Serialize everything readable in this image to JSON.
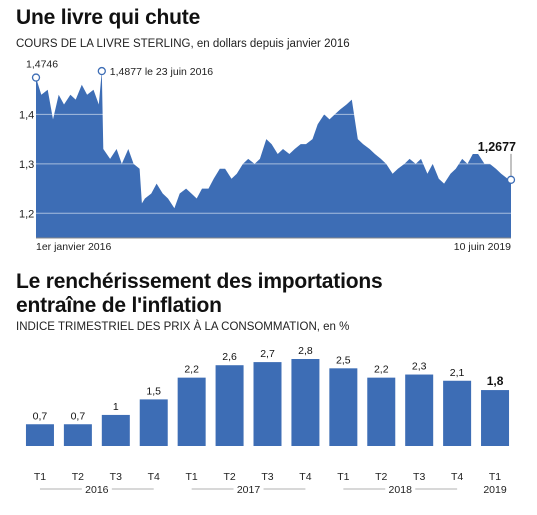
{
  "colors": {
    "accent": "#3d6db5",
    "text": "#111111",
    "grid": "#ffffff",
    "axis_text": "#222222"
  },
  "chart_data": [
    {
      "type": "area",
      "title": "Une livre qui chute",
      "subtitle": "COURS DE LA LIVRE STERLING, en dollars depuis janvier 2016",
      "xlabel": "",
      "ylabel": "",
      "x_range": [
        "2016-01-01",
        "2019-06-10"
      ],
      "x_tick_labels": [
        "1er janvier 2016",
        "10 juin 2019"
      ],
      "y_ticks": [
        "1,2",
        "1,3",
        "1,4"
      ],
      "y_tick_values": [
        1.2,
        1.3,
        1.4
      ],
      "ylim": [
        1.15,
        1.5
      ],
      "grid": true,
      "annotations": [
        {
          "text": "1,4746",
          "x": "2016-01-01",
          "y": 1.4746
        },
        {
          "text": "1,4877 le 23 juin 2016",
          "x": "2016-06-23",
          "y": 1.4877
        },
        {
          "text": "1,2677",
          "x": "2019-06-10",
          "y": 1.2677
        }
      ],
      "x": [
        "2016-01-01",
        "2016-01-15",
        "2016-02-01",
        "2016-02-15",
        "2016-03-01",
        "2016-03-15",
        "2016-04-01",
        "2016-04-15",
        "2016-05-01",
        "2016-05-15",
        "2016-06-01",
        "2016-06-15",
        "2016-06-23",
        "2016-06-27",
        "2016-07-15",
        "2016-08-01",
        "2016-08-15",
        "2016-09-01",
        "2016-09-15",
        "2016-10-01",
        "2016-10-07",
        "2016-10-15",
        "2016-11-01",
        "2016-11-15",
        "2016-12-01",
        "2016-12-15",
        "2017-01-01",
        "2017-01-15",
        "2017-02-01",
        "2017-02-15",
        "2017-03-01",
        "2017-03-15",
        "2017-04-01",
        "2017-04-15",
        "2017-05-01",
        "2017-05-15",
        "2017-06-01",
        "2017-06-15",
        "2017-07-01",
        "2017-07-15",
        "2017-08-01",
        "2017-08-15",
        "2017-09-01",
        "2017-09-15",
        "2017-10-01",
        "2017-10-15",
        "2017-11-01",
        "2017-11-15",
        "2017-12-01",
        "2017-12-15",
        "2018-01-01",
        "2018-01-15",
        "2018-02-01",
        "2018-02-15",
        "2018-03-01",
        "2018-03-15",
        "2018-04-01",
        "2018-04-15",
        "2018-05-01",
        "2018-05-15",
        "2018-06-01",
        "2018-06-15",
        "2018-07-01",
        "2018-07-15",
        "2018-08-01",
        "2018-08-15",
        "2018-09-01",
        "2018-09-15",
        "2018-10-01",
        "2018-10-15",
        "2018-11-01",
        "2018-11-15",
        "2018-12-01",
        "2018-12-15",
        "2019-01-01",
        "2019-01-15",
        "2019-02-01",
        "2019-02-15",
        "2019-03-01",
        "2019-03-15",
        "2019-04-01",
        "2019-04-15",
        "2019-05-01",
        "2019-05-15",
        "2019-06-01",
        "2019-06-10"
      ],
      "values": [
        1.4746,
        1.44,
        1.45,
        1.39,
        1.44,
        1.42,
        1.44,
        1.43,
        1.46,
        1.44,
        1.45,
        1.42,
        1.4877,
        1.33,
        1.31,
        1.33,
        1.3,
        1.33,
        1.3,
        1.29,
        1.22,
        1.23,
        1.24,
        1.26,
        1.24,
        1.23,
        1.21,
        1.24,
        1.25,
        1.24,
        1.23,
        1.25,
        1.25,
        1.27,
        1.29,
        1.29,
        1.27,
        1.28,
        1.3,
        1.31,
        1.3,
        1.31,
        1.35,
        1.34,
        1.32,
        1.33,
        1.32,
        1.33,
        1.34,
        1.34,
        1.35,
        1.38,
        1.4,
        1.39,
        1.4,
        1.41,
        1.42,
        1.43,
        1.35,
        1.34,
        1.33,
        1.32,
        1.31,
        1.3,
        1.28,
        1.29,
        1.3,
        1.31,
        1.3,
        1.31,
        1.28,
        1.3,
        1.27,
        1.26,
        1.28,
        1.29,
        1.31,
        1.3,
        1.32,
        1.32,
        1.3,
        1.3,
        1.29,
        1.28,
        1.27,
        1.2677
      ]
    },
    {
      "type": "bar",
      "title": "Le renchérissement des importations entraîne de l'inflation",
      "subtitle": "INDICE TRIMESTRIEL DES PRIX À LA CONSOMMATION, en %",
      "xlabel": "",
      "ylabel": "",
      "ylim": [
        0,
        2.8
      ],
      "grid": false,
      "categories": [
        "T1",
        "T2",
        "T3",
        "T4",
        "T1",
        "T2",
        "T3",
        "T4",
        "T1",
        "T2",
        "T3",
        "T4",
        "T1"
      ],
      "values": [
        0.7,
        0.7,
        1,
        1.5,
        2.2,
        2.6,
        2.7,
        2.8,
        2.5,
        2.2,
        2.3,
        2.1,
        1.8
      ],
      "value_labels": [
        "0,7",
        "0,7",
        "1",
        "1,5",
        "2,2",
        "2,6",
        "2,7",
        "2,8",
        "2,5",
        "2,2",
        "2,3",
        "2,1",
        "1,8"
      ],
      "year_groups": [
        {
          "label": "2016",
          "start": 0,
          "end": 3
        },
        {
          "label": "2017",
          "start": 4,
          "end": 7
        },
        {
          "label": "2018",
          "start": 8,
          "end": 11
        },
        {
          "label": "2019",
          "start": 12,
          "end": 12
        }
      ]
    }
  ]
}
